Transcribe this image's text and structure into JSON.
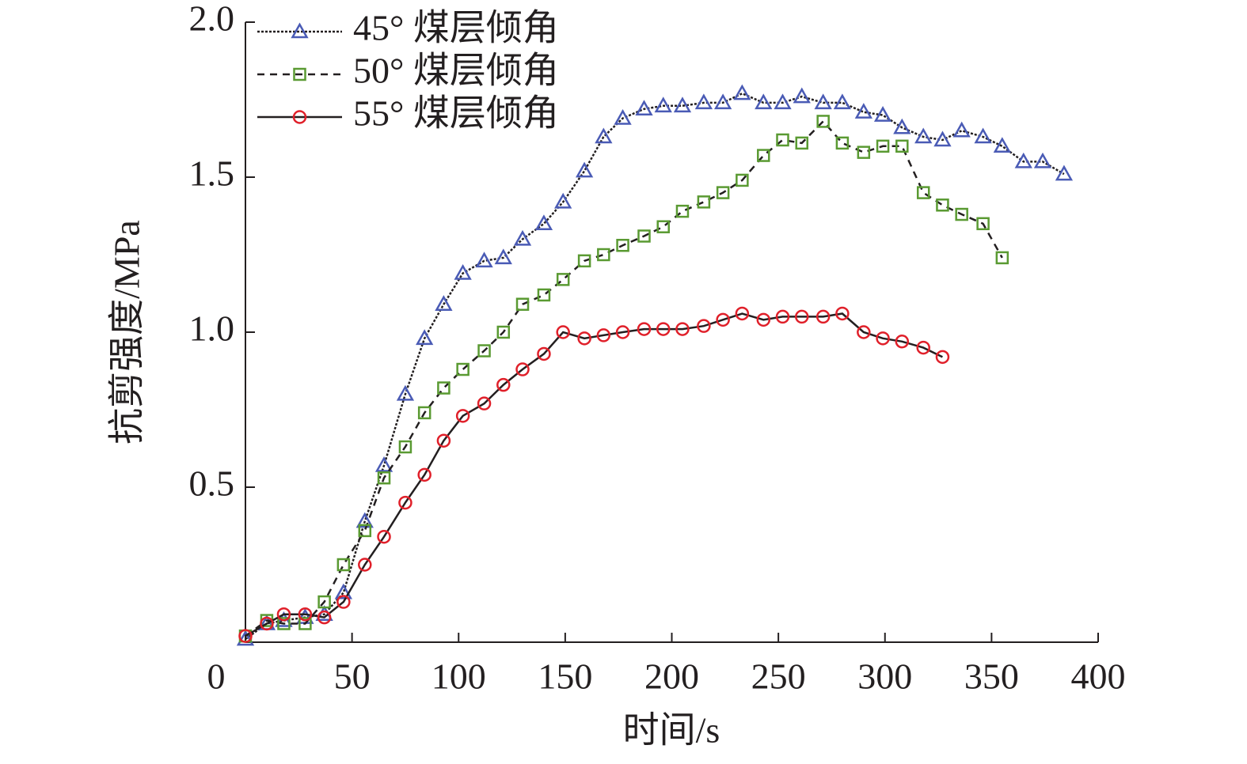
{
  "chart_data": {
    "type": "line",
    "xlabel": "时间/s",
    "ylabel": "抗剪强度/MPa",
    "xlim": [
      0,
      400
    ],
    "xticks": [
      0,
      50,
      100,
      150,
      200,
      250,
      300,
      350,
      400
    ],
    "ylim": [
      0,
      2.0
    ],
    "yticks": [
      0.5,
      {
        "value": 1,
        "label": "1.0"
      },
      1.5,
      {
        "value": 2,
        "label": "2.0"
      }
    ],
    "legend": "upper left",
    "series": [
      {
        "name": "45° 煤层倾角",
        "color": "#4a5bb5",
        "marker": "triangle",
        "linestyle": "dotted",
        "x": [
          0,
          10,
          18,
          28,
          37,
          46,
          56,
          65,
          75,
          84,
          93,
          102,
          112,
          121,
          130,
          140,
          149,
          159,
          168,
          177,
          187,
          196,
          205,
          215,
          224,
          233,
          243,
          252,
          261,
          271,
          280,
          290,
          299,
          308,
          318,
          327,
          336,
          346,
          355,
          365,
          374,
          384
        ],
        "values": [
          0.01,
          0.06,
          0.07,
          0.08,
          0.09,
          0.16,
          0.39,
          0.57,
          0.8,
          0.98,
          1.09,
          1.19,
          1.23,
          1.24,
          1.3,
          1.35,
          1.42,
          1.52,
          1.63,
          1.69,
          1.72,
          1.73,
          1.73,
          1.74,
          1.74,
          1.77,
          1.74,
          1.74,
          1.76,
          1.74,
          1.74,
          1.71,
          1.7,
          1.66,
          1.63,
          1.62,
          1.65,
          1.63,
          1.6,
          1.55,
          1.55,
          1.51
        ]
      },
      {
        "name": "50° 煤层倾角",
        "color": "#5a9a32",
        "marker": "square",
        "linestyle": "dashed",
        "x": [
          0,
          10,
          18,
          28,
          37,
          46,
          56,
          65,
          75,
          84,
          93,
          102,
          112,
          121,
          130,
          140,
          149,
          159,
          168,
          177,
          187,
          196,
          205,
          215,
          224,
          233,
          243,
          252,
          261,
          271,
          280,
          290,
          299,
          308,
          318,
          327,
          336,
          346,
          355
        ],
        "values": [
          0.02,
          0.07,
          0.06,
          0.06,
          0.13,
          0.25,
          0.36,
          0.53,
          0.63,
          0.74,
          0.82,
          0.88,
          0.94,
          1.0,
          1.09,
          1.12,
          1.17,
          1.23,
          1.25,
          1.28,
          1.31,
          1.34,
          1.39,
          1.42,
          1.45,
          1.49,
          1.57,
          1.62,
          1.61,
          1.68,
          1.61,
          1.58,
          1.6,
          1.6,
          1.45,
          1.41,
          1.38,
          1.35,
          1.24
        ]
      },
      {
        "name": "55° 煤层倾角",
        "color": "#e0202a",
        "marker": "circle",
        "linestyle": "solid",
        "x": [
          0,
          10,
          18,
          28,
          37,
          46,
          56,
          65,
          75,
          84,
          93,
          102,
          112,
          121,
          130,
          140,
          149,
          159,
          168,
          177,
          187,
          196,
          205,
          215,
          224,
          233,
          243,
          252,
          261,
          271,
          280,
          290,
          299,
          308,
          318,
          327
        ],
        "values": [
          0.02,
          0.06,
          0.09,
          0.09,
          0.08,
          0.13,
          0.25,
          0.34,
          0.45,
          0.54,
          0.65,
          0.73,
          0.77,
          0.83,
          0.88,
          0.93,
          1.0,
          0.98,
          0.99,
          1.0,
          1.01,
          1.01,
          1.01,
          1.02,
          1.04,
          1.06,
          1.04,
          1.05,
          1.05,
          1.05,
          1.06,
          1.0,
          0.98,
          0.97,
          0.95,
          0.92
        ]
      }
    ]
  }
}
